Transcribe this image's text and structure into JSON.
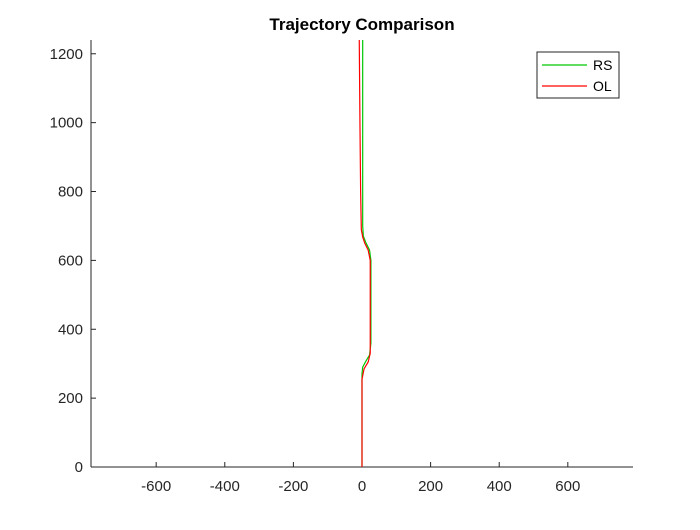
{
  "chart_data": {
    "type": "line",
    "title": "Trajectory Comparison",
    "xlabel": "",
    "ylabel": "",
    "xlim": [
      -790,
      790
    ],
    "ylim": [
      0,
      1240
    ],
    "xticks": [
      -600,
      -400,
      -200,
      0,
      200,
      400,
      600
    ],
    "yticks": [
      0,
      200,
      400,
      600,
      800,
      1000,
      1200
    ],
    "grid": false,
    "legend_position": "top-right",
    "series": [
      {
        "name": "RS",
        "color": "#00c800",
        "points": [
          [
            0,
            0
          ],
          [
            0,
            270
          ],
          [
            2,
            290
          ],
          [
            10,
            305
          ],
          [
            22,
            325
          ],
          [
            26,
            360
          ],
          [
            26,
            600
          ],
          [
            22,
            630
          ],
          [
            12,
            650
          ],
          [
            4,
            670
          ],
          [
            2,
            700
          ],
          [
            2,
            1000
          ],
          [
            2,
            1240
          ]
        ]
      },
      {
        "name": "OL",
        "color": "#ff0000",
        "points": [
          [
            0,
            0
          ],
          [
            0,
            255
          ],
          [
            6,
            285
          ],
          [
            18,
            305
          ],
          [
            24,
            330
          ],
          [
            24,
            600
          ],
          [
            18,
            630
          ],
          [
            8,
            650
          ],
          [
            2,
            668
          ],
          [
            -2,
            690
          ],
          [
            -4,
            800
          ],
          [
            -6,
            1000
          ],
          [
            -8,
            1240
          ]
        ]
      }
    ]
  }
}
